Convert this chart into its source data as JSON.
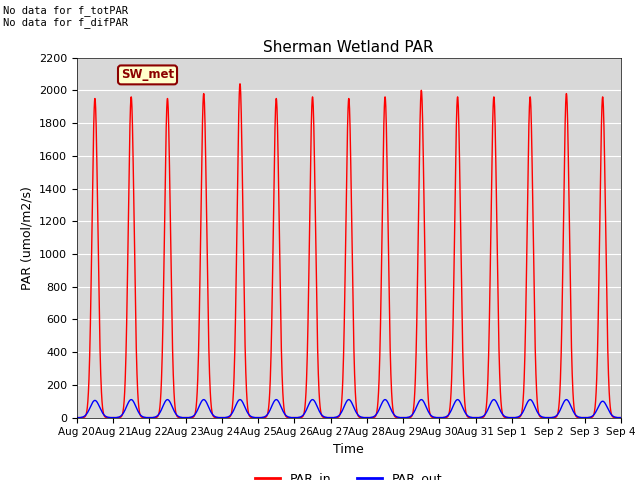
{
  "title": "Sherman Wetland PAR",
  "ylabel": "PAR (umol/m2/s)",
  "xlabel": "Time",
  "ylim": [
    0,
    2200
  ],
  "yticks": [
    0,
    200,
    400,
    600,
    800,
    1000,
    1200,
    1400,
    1600,
    1800,
    2000,
    2200
  ],
  "background_color": "#d8d8d8",
  "fig_background": "#ffffff",
  "annotation_text": "No data for f_totPAR\nNo data for f_difPAR",
  "legend_box_label": "SW_met",
  "legend_box_color": "#ffffcc",
  "legend_box_edge_color": "#8b0000",
  "legend_box_text_color": "#8b0000",
  "n_days": 15,
  "par_in_peaks": [
    1950,
    1960,
    1950,
    1980,
    2040,
    1950,
    1960,
    1950,
    1960,
    2000,
    1960,
    1960,
    1960,
    1980,
    1960
  ],
  "par_out_peaks": [
    105,
    110,
    110,
    110,
    110,
    110,
    110,
    110,
    110,
    110,
    110,
    110,
    110,
    110,
    100
  ],
  "x_tick_labels": [
    "Aug 20",
    "Aug 21",
    "Aug 22",
    "Aug 23",
    "Aug 24",
    "Aug 25",
    "Aug 26",
    "Aug 27",
    "Aug 28",
    "Aug 29",
    "Aug 30",
    "Aug 31",
    "Sep 1",
    "Sep 2",
    "Sep 3",
    "Sep 4"
  ],
  "grid_color": "#ffffff",
  "grid_linewidth": 0.8,
  "line_color_in": "#ff0000",
  "line_color_out": "#0000ff",
  "line_width": 1.0
}
